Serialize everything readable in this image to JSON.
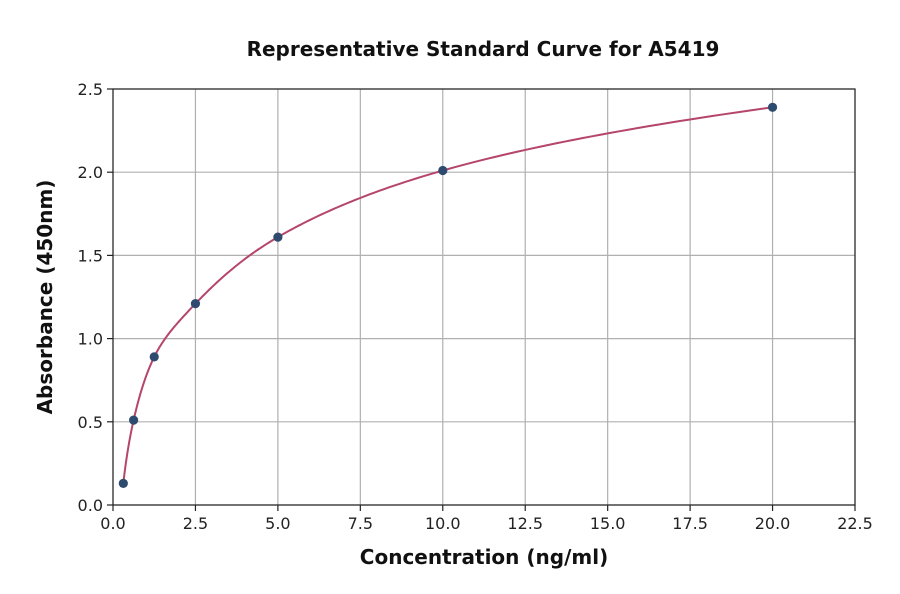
{
  "chart_data": {
    "type": "scatter",
    "title": "Representative Standard Curve for A5419",
    "xlabel": "Concentration (ng/ml)",
    "ylabel": "Absorbance (450nm)",
    "xlim": [
      0,
      22.5
    ],
    "ylim": [
      0,
      2.5
    ],
    "xticks": [
      0,
      2.5,
      5,
      7.5,
      10,
      12.5,
      15,
      17.5,
      20,
      22.5
    ],
    "xtick_labels": [
      "0.0",
      "2.5",
      "5.0",
      "7.5",
      "10.0",
      "12.5",
      "15.0",
      "17.5",
      "20.0",
      "22.5"
    ],
    "yticks": [
      0,
      0.5,
      1,
      1.5,
      2,
      2.5
    ],
    "ytick_labels": [
      "0.0",
      "0.5",
      "1.0",
      "1.5",
      "2.0",
      "2.5"
    ],
    "grid": true,
    "series": [
      {
        "kind": "points",
        "x": [
          0.3125,
          0.625,
          1.25,
          2.5,
          5,
          10,
          20
        ],
        "y": [
          0.13,
          0.51,
          0.89,
          1.21,
          1.61,
          2.01,
          2.39
        ],
        "color": "#2e4a6e"
      },
      {
        "kind": "fit-curve",
        "color": "#b5456a"
      }
    ]
  }
}
